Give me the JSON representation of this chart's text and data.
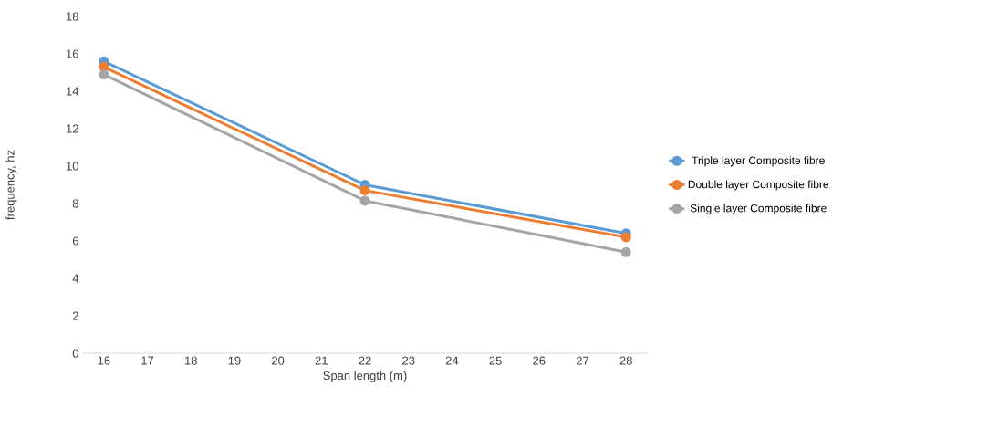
{
  "chart_data": {
    "type": "line",
    "xlabel": "Span length (m)",
    "ylabel": "frequency, hz",
    "x": [
      16,
      22,
      28
    ],
    "series": [
      {
        "name": "Triple layer Composite fibre",
        "color": "#5b9bd5",
        "values": [
          15.6,
          9.0,
          6.4
        ]
      },
      {
        "name": "Double layer Composite fibre",
        "color": "#ed7d31",
        "values": [
          15.3,
          8.7,
          6.2
        ]
      },
      {
        "name": "Single layer Composite fibre",
        "color": "#a5a5a5",
        "values": [
          14.9,
          8.15,
          5.4
        ]
      }
    ],
    "xlim": [
      15.5,
      28.5
    ],
    "xticks": [
      16,
      17,
      18,
      19,
      20,
      21,
      22,
      23,
      24,
      25,
      26,
      27,
      28
    ],
    "ylim": [
      0,
      18
    ],
    "yticks": [
      0,
      2,
      4,
      6,
      8,
      10,
      12,
      14,
      16,
      18
    ],
    "marker": "circle",
    "line_style": "solid",
    "legend": "right",
    "grid": false
  }
}
